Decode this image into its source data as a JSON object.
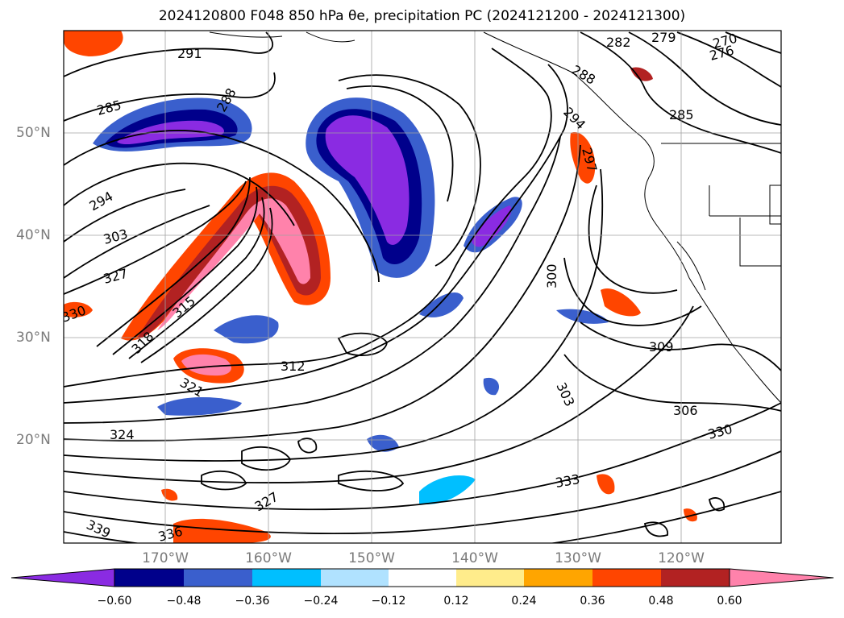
{
  "title": "2024120800 F048 850 hPa θe, precipitation PC (2024121200 - 2024121300)",
  "lat_labels": [
    "50°N",
    "40°N",
    "30°N",
    "20°N"
  ],
  "lon_labels": [
    "170°W",
    "160°W",
    "150°W",
    "140°W",
    "130°W",
    "120°W"
  ],
  "contour_labels": [
    "291",
    "285",
    "288",
    "294",
    "303",
    "327",
    "330",
    "315",
    "318",
    "321",
    "312",
    "324",
    "327",
    "336",
    "339",
    "333",
    "330",
    "306",
    "309",
    "303",
    "300",
    "297",
    "294",
    "288",
    "282",
    "279",
    "276",
    "270",
    "285"
  ],
  "colorbar": {
    "colors": [
      "#8a2be2",
      "#00008b",
      "#3a5fcd",
      "#00bfff",
      "#b0e2ff",
      "#ffffff",
      "#ffec8b",
      "#ffa500",
      "#ff4500",
      "#b22222",
      "#ff82ab"
    ],
    "ticks": [
      "−0.60",
      "−0.48",
      "−0.36",
      "−0.24",
      "−0.12",
      "0.12",
      "0.24",
      "0.36",
      "0.48",
      "0.60"
    ]
  }
}
